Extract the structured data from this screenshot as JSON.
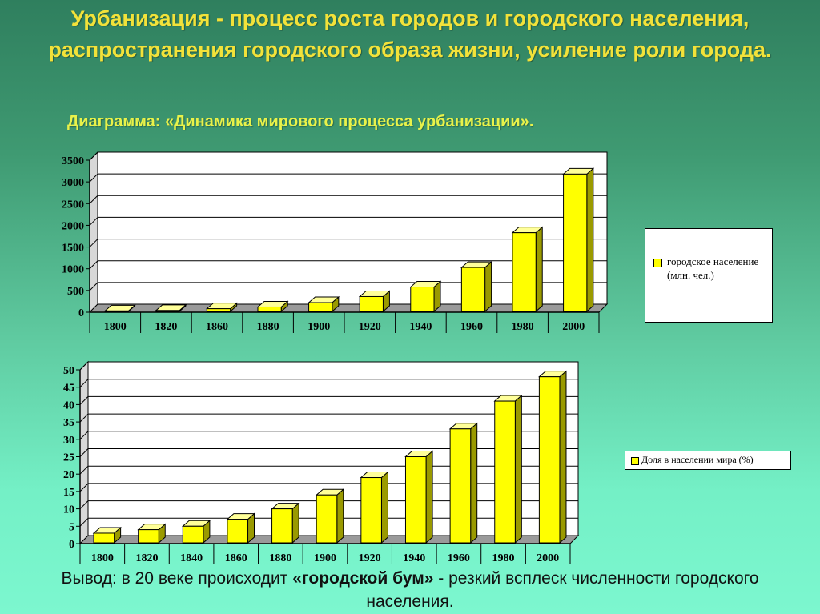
{
  "header": {
    "title": "Урбанизация - процесс роста городов и городского населения, распространения городского образа жизни, усиление роли города.",
    "subtitle": "Диаграмма: «Динамика мирового процесса урбанизации»."
  },
  "conclusion": {
    "prefix": "Вывод: в 20 веке происходит ",
    "highlight": "«городской бум»",
    "suffix": " - резкий всплеск численности городского населения."
  },
  "colors": {
    "bar": "#ffff00",
    "bar_side": "#9a9a00",
    "bar_top": "#ffff99",
    "plot_bg": "#ffffff"
  },
  "chart_data": [
    {
      "type": "bar",
      "title": "",
      "xlabel": "",
      "ylabel": "",
      "categories": [
        "1800",
        "1820",
        "1860",
        "1880",
        "1900",
        "1920",
        "1940",
        "1960",
        "1980",
        "2000"
      ],
      "series": [
        {
          "name": "городское население (млн. чел.)",
          "values": [
            30,
            40,
            80,
            120,
            220,
            360,
            580,
            1030,
            1830,
            3180
          ]
        }
      ],
      "ylim": [
        0,
        3500
      ],
      "yticks": [
        0,
        500,
        1000,
        1500,
        2000,
        2500,
        3000,
        3500
      ],
      "grid": true,
      "legend": "right"
    },
    {
      "type": "bar",
      "title": "",
      "xlabel": "",
      "ylabel": "",
      "categories": [
        "1800",
        "1820",
        "1840",
        "1860",
        "1880",
        "1900",
        "1920",
        "1940",
        "1960",
        "1980",
        "2000"
      ],
      "series": [
        {
          "name": "Доля в населении мира (%)",
          "values": [
            3,
            4,
            5,
            7,
            10,
            14,
            19,
            25,
            33,
            41,
            48
          ]
        }
      ],
      "ylim": [
        0,
        50
      ],
      "yticks": [
        0,
        5,
        10,
        15,
        20,
        25,
        30,
        35,
        40,
        45,
        50
      ],
      "grid": true,
      "legend": "right"
    }
  ]
}
